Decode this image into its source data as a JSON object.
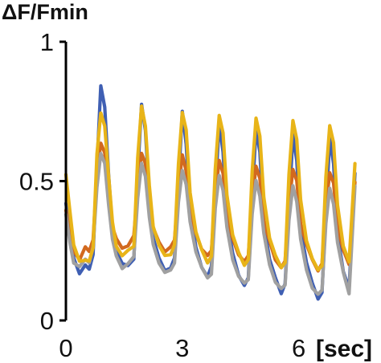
{
  "chart_data": {
    "type": "line",
    "ylabel": "ΔF/Fmin",
    "xlabel": "",
    "x_unit_label": "[sec]",
    "xlim": [
      0,
      7.5
    ],
    "ylim": [
      0,
      1
    ],
    "x_ticks": [
      {
        "value": 0,
        "label": "0"
      },
      {
        "value": 3,
        "label": "3"
      },
      {
        "value": 6,
        "label": "6"
      }
    ],
    "y_ticks": [
      {
        "value": 0,
        "label": "0"
      },
      {
        "value": 0.5,
        "label": "0.5"
      },
      {
        "value": 1,
        "label": "1"
      }
    ],
    "grid": false,
    "legend": "none",
    "series": [
      {
        "color": "#3f5fb3",
        "x": [
          0.0,
          0.1,
          0.2,
          0.35,
          0.5,
          0.6,
          0.7,
          0.8,
          0.9,
          1.0,
          1.1,
          1.2,
          1.3,
          1.45,
          1.6,
          1.75,
          1.85,
          1.95,
          2.05,
          2.15,
          2.25,
          2.4,
          2.55,
          2.7,
          2.8,
          2.9,
          3.0,
          3.1,
          3.2,
          3.35,
          3.5,
          3.65,
          3.75,
          3.85,
          3.95,
          4.05,
          4.15,
          4.3,
          4.45,
          4.6,
          4.7,
          4.8,
          4.9,
          5.0,
          5.1,
          5.25,
          5.4,
          5.55,
          5.65,
          5.75,
          5.85,
          5.95,
          6.05,
          6.2,
          6.35,
          6.5,
          6.6,
          6.7,
          6.8,
          6.9,
          7.0,
          7.15,
          7.3,
          7.45
        ],
        "y": [
          0.42,
          0.33,
          0.22,
          0.17,
          0.2,
          0.18,
          0.24,
          0.55,
          0.84,
          0.77,
          0.52,
          0.33,
          0.25,
          0.2,
          0.2,
          0.22,
          0.52,
          0.78,
          0.68,
          0.44,
          0.3,
          0.22,
          0.18,
          0.19,
          0.22,
          0.49,
          0.75,
          0.63,
          0.4,
          0.26,
          0.19,
          0.16,
          0.19,
          0.46,
          0.71,
          0.6,
          0.37,
          0.24,
          0.16,
          0.13,
          0.15,
          0.44,
          0.69,
          0.6,
          0.35,
          0.22,
          0.15,
          0.1,
          0.13,
          0.4,
          0.67,
          0.57,
          0.33,
          0.21,
          0.13,
          0.08,
          0.1,
          0.38,
          0.66,
          0.56,
          0.31,
          0.18,
          0.11,
          0.53
        ]
      },
      {
        "color": "#d2691e",
        "x": [
          0.0,
          0.1,
          0.2,
          0.35,
          0.5,
          0.6,
          0.7,
          0.8,
          0.9,
          1.0,
          1.1,
          1.2,
          1.3,
          1.45,
          1.6,
          1.75,
          1.85,
          1.95,
          2.05,
          2.15,
          2.25,
          2.4,
          2.55,
          2.7,
          2.8,
          2.9,
          3.0,
          3.1,
          3.2,
          3.35,
          3.5,
          3.65,
          3.75,
          3.85,
          3.95,
          4.05,
          4.15,
          4.3,
          4.45,
          4.6,
          4.7,
          4.8,
          4.9,
          5.0,
          5.1,
          5.25,
          5.4,
          5.55,
          5.65,
          5.75,
          5.85,
          5.95,
          6.05,
          6.2,
          6.35,
          6.5,
          6.6,
          6.7,
          6.8,
          6.9,
          7.0,
          7.15,
          7.3,
          7.45
        ],
        "y": [
          0.4,
          0.3,
          0.25,
          0.22,
          0.26,
          0.25,
          0.29,
          0.52,
          0.64,
          0.6,
          0.46,
          0.34,
          0.29,
          0.26,
          0.27,
          0.3,
          0.48,
          0.6,
          0.56,
          0.42,
          0.33,
          0.28,
          0.25,
          0.26,
          0.29,
          0.47,
          0.59,
          0.54,
          0.4,
          0.31,
          0.26,
          0.23,
          0.25,
          0.45,
          0.57,
          0.53,
          0.38,
          0.29,
          0.24,
          0.21,
          0.23,
          0.43,
          0.55,
          0.51,
          0.36,
          0.28,
          0.22,
          0.19,
          0.21,
          0.42,
          0.54,
          0.5,
          0.35,
          0.27,
          0.22,
          0.18,
          0.2,
          0.41,
          0.53,
          0.49,
          0.34,
          0.25,
          0.2,
          0.5
        ]
      },
      {
        "color": "#a0a0a0",
        "x": [
          0.0,
          0.1,
          0.2,
          0.35,
          0.5,
          0.6,
          0.7,
          0.8,
          0.9,
          1.0,
          1.1,
          1.2,
          1.3,
          1.45,
          1.6,
          1.75,
          1.85,
          1.95,
          2.05,
          2.15,
          2.25,
          2.4,
          2.55,
          2.7,
          2.8,
          2.9,
          3.0,
          3.1,
          3.2,
          3.35,
          3.5,
          3.65,
          3.75,
          3.85,
          3.95,
          4.05,
          4.15,
          4.3,
          4.45,
          4.6,
          4.7,
          4.8,
          4.9,
          5.0,
          5.1,
          5.25,
          5.4,
          5.55,
          5.65,
          5.75,
          5.85,
          5.95,
          6.05,
          6.2,
          6.35,
          6.5,
          6.6,
          6.7,
          6.8,
          6.9,
          7.0,
          7.15,
          7.3,
          7.45
        ],
        "y": [
          0.38,
          0.28,
          0.21,
          0.19,
          0.22,
          0.21,
          0.26,
          0.48,
          0.6,
          0.56,
          0.42,
          0.29,
          0.23,
          0.19,
          0.2,
          0.23,
          0.44,
          0.56,
          0.52,
          0.37,
          0.27,
          0.21,
          0.17,
          0.18,
          0.21,
          0.42,
          0.54,
          0.49,
          0.35,
          0.25,
          0.19,
          0.15,
          0.17,
          0.4,
          0.52,
          0.47,
          0.33,
          0.22,
          0.16,
          0.13,
          0.15,
          0.38,
          0.5,
          0.45,
          0.31,
          0.2,
          0.14,
          0.11,
          0.13,
          0.36,
          0.48,
          0.43,
          0.29,
          0.18,
          0.12,
          0.09,
          0.11,
          0.35,
          0.47,
          0.42,
          0.28,
          0.17,
          0.1,
          0.48
        ]
      },
      {
        "color": "#e8b418",
        "x": [
          0.0,
          0.1,
          0.2,
          0.35,
          0.5,
          0.6,
          0.7,
          0.8,
          0.9,
          1.0,
          1.1,
          1.2,
          1.3,
          1.45,
          1.6,
          1.75,
          1.85,
          1.95,
          2.05,
          2.15,
          2.25,
          2.4,
          2.55,
          2.7,
          2.8,
          2.9,
          3.0,
          3.1,
          3.2,
          3.35,
          3.5,
          3.65,
          3.75,
          3.85,
          3.95,
          4.05,
          4.15,
          4.3,
          4.45,
          4.6,
          4.7,
          4.8,
          4.9,
          5.0,
          5.1,
          5.25,
          5.4,
          5.55,
          5.65,
          5.75,
          5.85,
          5.95,
          6.05,
          6.2,
          6.35,
          6.5,
          6.6,
          6.7,
          6.8,
          6.9,
          7.0,
          7.15,
          7.3,
          7.45
        ],
        "y": [
          0.52,
          0.4,
          0.27,
          0.21,
          0.22,
          0.21,
          0.26,
          0.6,
          0.74,
          0.7,
          0.52,
          0.35,
          0.27,
          0.23,
          0.25,
          0.27,
          0.58,
          0.77,
          0.7,
          0.48,
          0.34,
          0.27,
          0.23,
          0.24,
          0.27,
          0.56,
          0.75,
          0.68,
          0.46,
          0.32,
          0.25,
          0.21,
          0.23,
          0.54,
          0.74,
          0.67,
          0.45,
          0.31,
          0.24,
          0.2,
          0.22,
          0.53,
          0.73,
          0.66,
          0.44,
          0.3,
          0.23,
          0.19,
          0.21,
          0.52,
          0.72,
          0.65,
          0.43,
          0.29,
          0.22,
          0.18,
          0.2,
          0.51,
          0.7,
          0.64,
          0.41,
          0.27,
          0.21,
          0.56
        ]
      }
    ]
  }
}
